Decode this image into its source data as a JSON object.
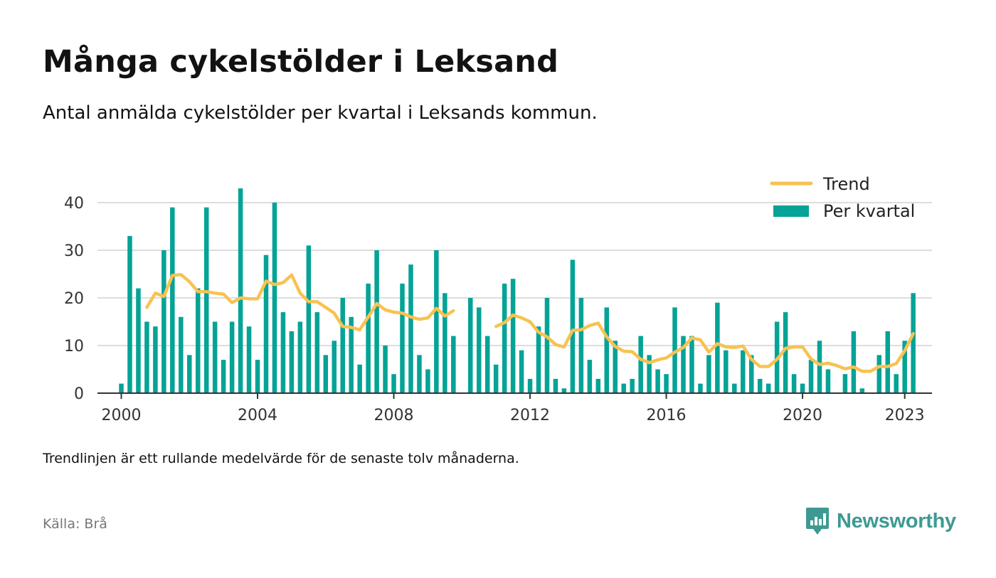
{
  "title": "Många cykelstölder i Leksand",
  "subtitle": "Antal anmälda cykelstölder per kvartal i Leksands kommun.",
  "note": "Trendlinjen är ett rullande medelvärde för de senaste tolv månaderna.",
  "source": "Källa: Brå",
  "brand": "Newsworthy",
  "colors": {
    "bars": "#04a396",
    "trend": "#f8c251",
    "grid": "#dddddd",
    "axis": "#333333",
    "brand": "#3d9a92"
  },
  "chart_data": {
    "type": "bar",
    "x_unit": "quarter",
    "xlim": [
      1999.3,
      2023.8
    ],
    "ylim": [
      0,
      43
    ],
    "yticks": [
      0,
      10,
      20,
      30,
      40
    ],
    "xticks": [
      2000,
      2004,
      2008,
      2012,
      2016,
      2020,
      2023
    ],
    "legend_position": "top-right",
    "grid": true,
    "series": [
      {
        "name": "Per kvartal",
        "type": "bar",
        "start": "2000-Q1",
        "values": [
          2,
          33,
          22,
          15,
          14,
          30,
          39,
          16,
          8,
          22,
          39,
          15,
          7,
          15,
          43,
          14,
          7,
          29,
          40,
          17,
          13,
          15,
          31,
          17,
          8,
          11,
          20,
          16,
          6,
          23,
          30,
          10,
          4,
          23,
          27,
          8,
          5,
          30,
          21,
          12,
          null,
          20,
          18,
          12,
          6,
          23,
          24,
          9,
          3,
          14,
          20,
          3,
          1,
          28,
          20,
          7,
          3,
          18,
          11,
          2,
          3,
          12,
          8,
          5,
          4,
          18,
          12,
          12,
          2,
          8,
          19,
          9,
          2,
          9,
          8,
          3,
          2,
          15,
          17,
          4,
          2,
          7,
          11,
          5,
          0,
          4,
          13,
          1,
          0,
          8,
          13,
          4,
          11,
          21
        ]
      },
      {
        "name": "Trend",
        "type": "line",
        "start": "2000-Q4",
        "values": [
          18,
          21,
          20.3,
          24.7,
          24.9,
          23.4,
          21.3,
          21.3,
          21,
          20.8,
          19,
          20,
          19.8,
          19.8,
          23.5,
          22.8,
          23.2,
          24.8,
          21,
          19.2,
          19.2,
          18,
          16.8,
          14,
          13.8,
          13.3,
          16,
          18.8,
          17.5,
          17,
          16.8,
          16,
          15.5,
          15.8,
          17.8,
          16.2,
          17.3,
          null,
          null,
          null,
          null,
          14,
          14.8,
          16.4,
          15.8,
          15,
          12.8,
          11.8,
          10.2,
          9.7,
          13.2,
          13.3,
          14.2,
          14.7,
          11.8,
          9.8,
          8.8,
          8.7,
          7.1,
          6.4,
          7,
          7.4,
          8.6,
          9.6,
          11.6,
          11.2,
          8.6,
          10.4,
          9.7,
          9.6,
          9.9,
          7.1,
          5.6,
          5.6,
          7.1,
          9.4,
          9.7,
          9.7,
          7.2,
          6,
          6.3,
          5.8,
          5.1,
          5.5,
          4.6,
          4.6,
          5.6,
          5.6,
          6.2,
          8.9,
          12.5
        ]
      }
    ]
  }
}
